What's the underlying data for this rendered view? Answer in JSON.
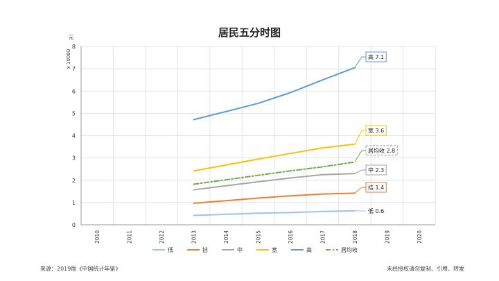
{
  "chart_data": {
    "type": "line",
    "title": "居民五分时图",
    "ylabel": "x 10000",
    "yunit": "元",
    "categories": [
      "2010",
      "2011",
      "2012",
      "2013",
      "2014",
      "2015",
      "2016",
      "2017",
      "2018",
      "2019",
      "2020"
    ],
    "ylim": [
      0,
      8
    ],
    "yticks": [
      "0",
      "1",
      "2",
      "3",
      "4",
      "5",
      "6",
      "7",
      "8"
    ],
    "grid": true,
    "legend_position": "bottom",
    "series": [
      {
        "name": "低",
        "color": "#9dc3e6",
        "dash": "",
        "values": [
          null,
          null,
          null,
          0.42,
          0.47,
          0.52,
          0.55,
          0.6,
          0.63,
          null,
          null
        ],
        "label": "低 0.6"
      },
      {
        "name": "拮",
        "color": "#ed7d31",
        "dash": "",
        "values": [
          null,
          null,
          null,
          0.97,
          1.08,
          1.2,
          1.3,
          1.38,
          1.42,
          null,
          null
        ],
        "label": "拮 1.4"
      },
      {
        "name": "中",
        "color": "#a5a5a5",
        "dash": "",
        "values": [
          null,
          null,
          null,
          1.57,
          1.75,
          1.93,
          2.1,
          2.25,
          2.3,
          null,
          null
        ],
        "label": "中 2.3"
      },
      {
        "name": "宽",
        "color": "#ffc000",
        "dash": "",
        "values": [
          null,
          null,
          null,
          2.42,
          2.68,
          2.95,
          3.2,
          3.45,
          3.62,
          null,
          null
        ],
        "label": "宽 3.6"
      },
      {
        "name": "高",
        "color": "#5b9bd5",
        "dash": "",
        "values": [
          null,
          null,
          null,
          4.72,
          5.08,
          5.45,
          5.93,
          6.5,
          7.05,
          null,
          null
        ],
        "label": "高 7.1"
      },
      {
        "name": "居均收",
        "color": "#70ad47",
        "dash": "7,3,2,3",
        "values": [
          null,
          null,
          null,
          1.82,
          2.02,
          2.22,
          2.42,
          2.6,
          2.82,
          null,
          null
        ],
        "label": "居均收 2.8"
      }
    ]
  },
  "footer": {
    "source": "来源：2019版《中国统计年鉴》",
    "rights": "未经授权请勿复制、引用、转发"
  }
}
